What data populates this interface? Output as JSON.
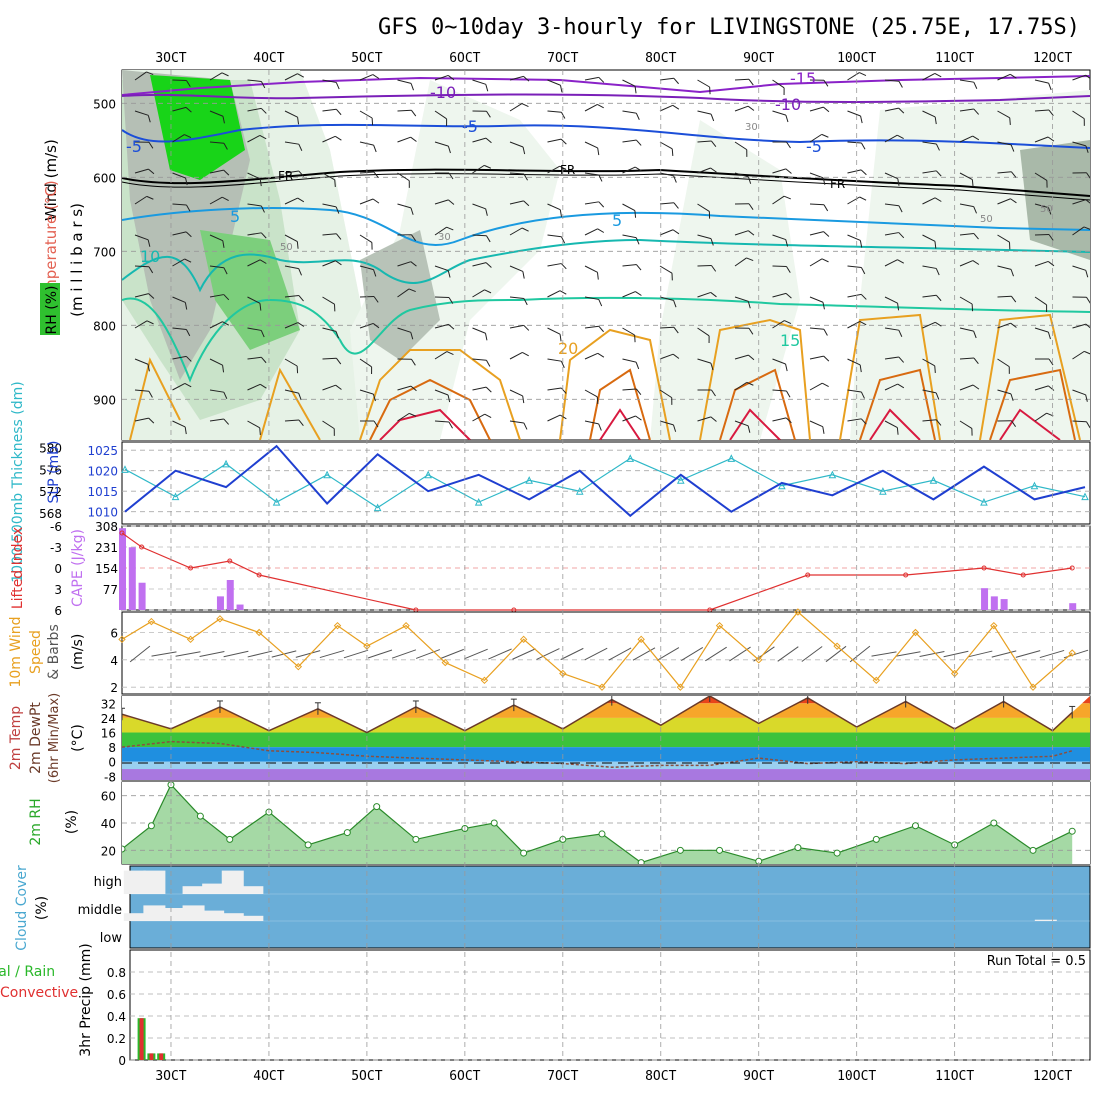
{
  "title": "GFS 0~10day 3-hourly for LIVINGSTONE (25.75E, 17.75S)",
  "x_ticks": [
    "3OCT",
    "4OCT",
    "5OCT",
    "6OCT",
    "7OCT",
    "8OCT",
    "9OCT",
    "10OCT",
    "11OCT",
    "12OCT"
  ],
  "colors": {
    "slp": "#1f3fd0",
    "thickness": "#2fb8c8",
    "lifted": "#e03030",
    "cape": "#c070f0",
    "wind": "#e8a020",
    "barb": "#555555",
    "rh_green": "#2aa82a",
    "cloud_bg": "#6aaed8",
    "precip_total": "#2ab82a",
    "precip_conv": "#e03030",
    "temp_line": "#6b3a28"
  },
  "panels": {
    "upper": {
      "ylabel_wind": "Wind (m/s)",
      "ylabel_temp": "Temperature (°C)",
      "ylabel_rh": "RH (%)",
      "ylabel_mb": "(m i l l i b a r s)",
      "yticks": [
        "500",
        "600",
        "700",
        "800",
        "900"
      ],
      "contour_labels": {
        "m15": "-15",
        "m10a": "-10",
        "m10b": "-10",
        "m5a": "-5",
        "m5b": "-5",
        "m5c": "-5",
        "fr1": "FR",
        "fr2": "FR",
        "fr3": "FR",
        "p5a": "5",
        "p5b": "5",
        "p10": "10",
        "p15": "15",
        "p20": "20",
        "r30a": "30",
        "r30b": "30",
        "r50a": "50",
        "r50b": "50",
        "r50c": "50"
      }
    },
    "slp": {
      "ylabel_thk": "1000-500mb Thickness (dm)",
      "ylabel_slp": "SLP (mb)",
      "left_ticks": [
        "580",
        "576",
        "572",
        "568"
      ],
      "right_ticks": [
        "1025",
        "1020",
        "1015",
        "1010"
      ]
    },
    "li": {
      "ylabel_li": "Lifted Index",
      "ylabel_cape": "CAPE (J/kg)",
      "left_ticks": [
        "-6",
        "-3",
        "0",
        "3",
        "6"
      ],
      "right_ticks": [
        "308",
        "231",
        "154",
        "77"
      ]
    },
    "wind": {
      "ylabel1": "10m Wind",
      "ylabel2": "Speed",
      "ylabel3": "& Barbs",
      "unit": "(m/s)",
      "ticks": [
        "6",
        "4",
        "2"
      ]
    },
    "temp": {
      "ylabel1": "2m Temp",
      "ylabel2": "2m DewPt",
      "ylabel3": "(6hr Min/Max)",
      "unit": "(°C)",
      "ticks": [
        "32",
        "24",
        "16",
        "8",
        "0",
        "-8"
      ]
    },
    "rh": {
      "ylabel": "2m RH",
      "unit": "(%)",
      "ticks": [
        "60",
        "40",
        "20"
      ]
    },
    "cloud": {
      "ylabel": "Cloud Cover",
      "unit": "(%)",
      "levels": [
        "high",
        "middle",
        "low"
      ]
    },
    "precip": {
      "ylabel1": "Total / Rain",
      "ylabel2": "Convective",
      "ylabel3": "3hr Precip (mm)",
      "run_total": "Run Total = 0.5",
      "ticks": [
        "0.8",
        "0.6",
        "0.4",
        "0.2",
        "0"
      ]
    }
  },
  "chart_data": [
    {
      "type": "line",
      "title": "SLP (mb)",
      "x": [
        "3OCT",
        "3OCT",
        "4OCT",
        "4OCT",
        "5OCT",
        "5OCT",
        "6OCT",
        "6OCT",
        "7OCT",
        "7OCT",
        "8OCT",
        "8OCT",
        "9OCT",
        "9OCT",
        "10OCT",
        "10OCT",
        "11OCT",
        "11OCT",
        "12OCT",
        "12OCT"
      ],
      "series": [
        {
          "name": "SLP (mb)",
          "values": [
            1010,
            1020,
            1016,
            1026,
            1012,
            1024,
            1015,
            1019,
            1013,
            1020,
            1009,
            1019,
            1010,
            1017,
            1014,
            1020,
            1013,
            1021,
            1013,
            1016
          ]
        },
        {
          "name": "1000-500mb Thickness (dm)",
          "values": [
            576,
            571,
            577,
            570,
            575,
            569,
            575,
            570,
            574,
            572,
            578,
            574,
            578,
            573,
            575,
            572,
            574,
            570,
            573,
            571
          ]
        }
      ]
    },
    {
      "type": "bar",
      "title": "CAPE (J/kg)",
      "categories": [
        "2.5OCT",
        "2.6OCT",
        "2.7OCT",
        "3.5OCT",
        "3.6OCT",
        "3.7OCT",
        "11.3OCT",
        "11.4OCT",
        "11.5OCT",
        "12.2OCT"
      ],
      "values": [
        300,
        230,
        100,
        50,
        110,
        20,
        80,
        50,
        40,
        25
      ],
      "ylim": [
        0,
        308
      ]
    },
    {
      "type": "line",
      "title": "Lifted Index",
      "x": [
        "2.5OCT",
        "2.7OCT",
        "3.2OCT",
        "3.6OCT",
        "3.9OCT",
        "5.5OCT",
        "6.5OCT",
        "8.5OCT",
        "9.5OCT",
        "10.5OCT",
        "11.3OCT",
        "11.7OCT",
        "12.2OCT"
      ],
      "values": [
        -5,
        -3,
        0,
        -1,
        1,
        6,
        6,
        6,
        1,
        1,
        0,
        1,
        0
      ],
      "ylim": [
        6,
        -6
      ]
    },
    {
      "type": "line",
      "title": "10m Wind Speed (m/s)",
      "x": [
        "2.5",
        "2.8",
        "3.2",
        "3.5",
        "3.9",
        "4.3",
        "4.7",
        "5.0",
        "5.4",
        "5.8",
        "6.2",
        "6.6",
        "7.0",
        "7.4",
        "7.8",
        "8.2",
        "8.6",
        "9.0",
        "9.4",
        "9.8",
        "10.2",
        "10.6",
        "11.0",
        "11.4",
        "11.8",
        "12.2"
      ],
      "values": [
        5.5,
        6.8,
        5.5,
        7.0,
        6.0,
        3.5,
        6.5,
        5.0,
        6.5,
        3.8,
        2.5,
        5.5,
        3.0,
        2.0,
        5.5,
        2.0,
        6.5,
        4.0,
        7.5,
        5.0,
        2.5,
        6.0,
        3.0,
        6.5,
        2.0,
        4.5
      ],
      "ylim": [
        1.5,
        7.5
      ]
    },
    {
      "type": "area",
      "title": "2m Temp / DewPt (°C)",
      "x": [
        "2.5",
        "3.0",
        "3.5",
        "4.0",
        "4.5",
        "5.0",
        "5.5",
        "6.0",
        "6.5",
        "7.0",
        "7.5",
        "8.0",
        "8.5",
        "9.0",
        "9.5",
        "10.0",
        "10.5",
        "11.0",
        "11.5",
        "12.0",
        "12.2"
      ],
      "series": [
        {
          "name": "2m Temp",
          "values": [
            26,
            18,
            30,
            17,
            29,
            16,
            30,
            17,
            31,
            18,
            34,
            20,
            36,
            21,
            35,
            19,
            33,
            18,
            33,
            17,
            27
          ]
        },
        {
          "name": "2m DewPt",
          "values": [
            8,
            11,
            10,
            6,
            5,
            3,
            2,
            1,
            0,
            -1,
            -3,
            -2,
            -2,
            2,
            -1,
            0,
            -1,
            1,
            2,
            3,
            6
          ]
        }
      ],
      "ylim": [
        -10,
        36
      ]
    },
    {
      "type": "area",
      "title": "2m RH (%)",
      "x": [
        "2.5",
        "2.8",
        "3.0",
        "3.3",
        "3.6",
        "4.0",
        "4.4",
        "4.8",
        "5.1",
        "5.5",
        "6.0",
        "6.3",
        "6.6",
        "7.0",
        "7.4",
        "7.8",
        "8.2",
        "8.6",
        "9.0",
        "9.4",
        "9.8",
        "10.2",
        "10.6",
        "11.0",
        "11.4",
        "11.8",
        "12.2"
      ],
      "values": [
        21,
        38,
        68,
        45,
        28,
        48,
        24,
        33,
        52,
        28,
        36,
        40,
        18,
        28,
        32,
        11,
        20,
        20,
        12,
        22,
        18,
        28,
        38,
        24,
        40,
        20,
        34
      ],
      "ylim": [
        10,
        70
      ]
    },
    {
      "type": "bar",
      "title": "3hr Precip (mm)",
      "categories": [
        "2.7OCT",
        "2.8OCT",
        "2.9OCT"
      ],
      "series": [
        {
          "name": "Total / Rain",
          "values": [
            0.38,
            0.06,
            0.06
          ]
        },
        {
          "name": "Convective",
          "values": [
            0.38,
            0.06,
            0.06
          ]
        }
      ],
      "ylim": [
        0,
        1.0
      ]
    },
    {
      "type": "bar",
      "title": "Cloud Cover (%)",
      "categories": [
        "2.6OCT",
        "2.8OCT",
        "3.0OCT",
        "3.2OCT",
        "3.4OCT",
        "3.6OCT",
        "3.8OCT",
        "11.9OCT"
      ],
      "series": [
        {
          "name": "high",
          "values": [
            90,
            90,
            0,
            30,
            40,
            90,
            30,
            0
          ]
        },
        {
          "name": "middle",
          "values": [
            30,
            60,
            50,
            60,
            40,
            30,
            20,
            5
          ]
        },
        {
          "name": "low",
          "values": [
            0,
            0,
            0,
            0,
            0,
            0,
            0,
            0
          ]
        }
      ]
    }
  ]
}
